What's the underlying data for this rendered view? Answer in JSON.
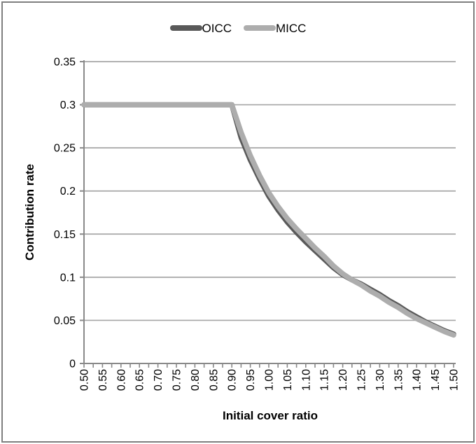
{
  "legend": {
    "items": [
      {
        "label": "OICC",
        "color": "#595959"
      },
      {
        "label": "MICC",
        "color": "#ADADAD"
      }
    ]
  },
  "chart_data": {
    "type": "line",
    "title": "",
    "xlabel": "Initial cover ratio",
    "ylabel": "Contribution rate",
    "xlim": [
      0.5,
      1.5
    ],
    "ylim": [
      0,
      0.35
    ],
    "grid": true,
    "legend_position": "top-center",
    "x": [
      0.5,
      0.525,
      0.55,
      0.575,
      0.6,
      0.625,
      0.65,
      0.675,
      0.7,
      0.725,
      0.75,
      0.775,
      0.8,
      0.825,
      0.85,
      0.875,
      0.9,
      0.925,
      0.95,
      0.975,
      1.0,
      1.025,
      1.05,
      1.075,
      1.1,
      1.125,
      1.15,
      1.175,
      1.2,
      1.225,
      1.25,
      1.275,
      1.3,
      1.325,
      1.35,
      1.375,
      1.4,
      1.425,
      1.45,
      1.475,
      1.5
    ],
    "series": [
      {
        "name": "OICC",
        "color": "#595959",
        "values": [
          0.3,
          0.3,
          0.3,
          0.3,
          0.3,
          0.3,
          0.3,
          0.3,
          0.3,
          0.3,
          0.3,
          0.3,
          0.3,
          0.3,
          0.3,
          0.3,
          0.3,
          0.262,
          0.236,
          0.214,
          0.194,
          0.178,
          0.164,
          0.152,
          0.141,
          0.131,
          0.121,
          0.111,
          0.103,
          0.097,
          0.092,
          0.086,
          0.08,
          0.073,
          0.067,
          0.06,
          0.054,
          0.048,
          0.043,
          0.038,
          0.034
        ]
      },
      {
        "name": "MICC",
        "color": "#ADADAD",
        "values": [
          0.3,
          0.3,
          0.3,
          0.3,
          0.3,
          0.3,
          0.3,
          0.3,
          0.3,
          0.3,
          0.3,
          0.3,
          0.3,
          0.3,
          0.3,
          0.3,
          0.3,
          0.268,
          0.241,
          0.218,
          0.198,
          0.182,
          0.168,
          0.156,
          0.145,
          0.134,
          0.124,
          0.113,
          0.104,
          0.097,
          0.091,
          0.084,
          0.078,
          0.071,
          0.065,
          0.058,
          0.052,
          0.047,
          0.042,
          0.037,
          0.033
        ]
      }
    ],
    "yticks": [
      0,
      0.05,
      0.1,
      0.15,
      0.2,
      0.25,
      0.3,
      0.35
    ],
    "ytick_labels": [
      "0",
      "0.05",
      "0.1",
      "0.15",
      "0.2",
      "0.25",
      "0.3",
      "0.35"
    ],
    "xtick_labels": [
      "0.50",
      "0.55",
      "0.60",
      "0.65",
      "0.70",
      "0.75",
      "0.80",
      "0.85",
      "0.90",
      "0.95",
      "1.00",
      "1.05",
      "1.10",
      "1.15",
      "1.20",
      "1.25",
      "1.30",
      "1.35",
      "1.40",
      "1.45",
      "1.50"
    ],
    "colors": {
      "gridline": "#A6A6A6",
      "axis": "#898989",
      "tick_text": "#000000",
      "border": "#7F7F7F"
    }
  }
}
